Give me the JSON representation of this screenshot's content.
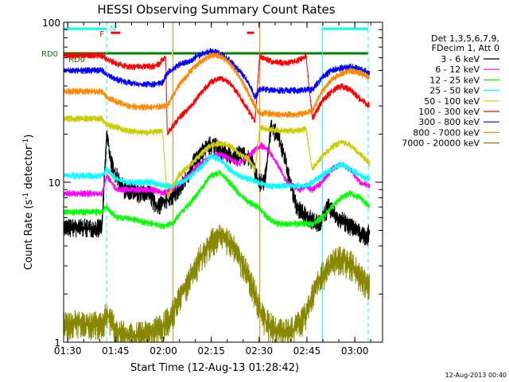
{
  "chart_data": {
    "type": "line",
    "title": "HESSI Observing Summary Count Rates",
    "xlabel": "Start Time (12-Aug-13 01:28:42)",
    "ylabel_prefix": "Count Rate (s",
    "ylabel_sup": "-1",
    "ylabel_suffix": " detector",
    "ylabel_end": ")",
    "y_scale": "log",
    "ylim": [
      1,
      100
    ],
    "xlim_minutes": [
      0,
      100
    ],
    "x_ticks": [
      {
        "m": 1.3,
        "label": "01:30"
      },
      {
        "m": 16.3,
        "label": "01:45"
      },
      {
        "m": 31.3,
        "label": "02:00"
      },
      {
        "m": 46.3,
        "label": "02:15"
      },
      {
        "m": 61.3,
        "label": "02:30"
      },
      {
        "m": 76.3,
        "label": "02:45"
      },
      {
        "m": 91.3,
        "label": "03:00"
      }
    ],
    "y_ticks": [
      {
        "v": 1,
        "label": "1"
      },
      {
        "v": 10,
        "label": "10"
      },
      {
        "v": 100,
        "label": "100"
      }
    ],
    "legend_header": [
      "Det 1,3,5,6,7,9,",
      "FDecim 1, Att 0"
    ],
    "series": [
      {
        "name": "3 - 6 keV",
        "color": "#000000",
        "x": [
          0,
          12,
          13.5,
          15,
          16.5,
          19,
          21,
          23,
          25,
          27,
          29,
          31,
          33,
          35,
          37,
          39,
          41,
          43,
          45,
          47,
          49,
          51,
          53,
          55,
          57,
          59,
          61,
          63,
          65,
          67,
          69,
          71,
          73,
          75,
          77,
          80,
          83,
          86,
          89,
          92,
          95,
          96
        ],
        "y": [
          5.2,
          5.2,
          20,
          13,
          11,
          9,
          9,
          8.5,
          8.5,
          8.5,
          7,
          7.5,
          8,
          8.5,
          9.5,
          11,
          13.5,
          15,
          17,
          17,
          16,
          15,
          14.5,
          15,
          14.5,
          14,
          10,
          10,
          22,
          20,
          15,
          10,
          7,
          6.5,
          6,
          5.5,
          7,
          6,
          5.5,
          5,
          4.5,
          5
        ]
      },
      {
        "name": "6 - 12 keV",
        "color": "#ff00ff",
        "x": [
          0,
          12,
          13.5,
          16.5,
          20,
          24,
          28,
          31,
          34,
          37,
          40,
          43,
          46,
          49,
          52,
          55,
          58,
          60,
          62,
          64,
          66,
          68,
          70,
          72,
          74,
          76,
          78,
          81,
          84,
          87,
          90,
          93,
          96
        ],
        "y": [
          8.5,
          8.5,
          11,
          9,
          9,
          9,
          9,
          8.5,
          9,
          10,
          11.5,
          13,
          14.5,
          15,
          14,
          13,
          14.5,
          16,
          17,
          16,
          14,
          12,
          10,
          9.5,
          9,
          9.5,
          9,
          10,
          12,
          13,
          12,
          10,
          9.5
        ]
      },
      {
        "name": "12 - 25 keV",
        "color": "#00ff00",
        "x": [
          0,
          12,
          13.5,
          16.5,
          20,
          24,
          28,
          31,
          34,
          37,
          40,
          43,
          46,
          49,
          52,
          55,
          58,
          61,
          64,
          67,
          70,
          73,
          76,
          78,
          81,
          84,
          87,
          90,
          93,
          96
        ],
        "y": [
          6.5,
          6.5,
          7,
          6,
          6,
          5.7,
          5.5,
          5.3,
          5.5,
          6.5,
          7.5,
          9,
          11,
          11.5,
          10,
          8.5,
          7.5,
          7,
          6,
          5.5,
          5.5,
          5.5,
          5.5,
          5.5,
          6,
          7,
          8,
          8.5,
          8,
          7
        ]
      },
      {
        "name": "25 - 50 keV",
        "color": "#00ffff",
        "x": [
          0,
          12,
          13.5,
          16.5,
          20,
          24,
          28,
          31,
          34,
          37,
          40,
          43,
          46,
          49,
          52,
          55,
          58,
          61,
          64,
          67,
          70,
          73,
          76,
          78,
          81,
          84,
          87,
          90,
          93,
          96
        ],
        "y": [
          11,
          11,
          12,
          10.5,
          10,
          10,
          10,
          9.5,
          9.5,
          10,
          11,
          12.5,
          14.5,
          14,
          12,
          11,
          10.5,
          10,
          9.5,
          9.5,
          9.5,
          9.5,
          9.5,
          10,
          11,
          12,
          13,
          12,
          11,
          10.5
        ]
      },
      {
        "name": "50 - 100 keV",
        "color": "#cccc00",
        "x": [
          0,
          12,
          13.5,
          16.5,
          20,
          24,
          28,
          31,
          32.5,
          36,
          40,
          43,
          46,
          49,
          52,
          55,
          58,
          60,
          61.5,
          64,
          67,
          70,
          73,
          76,
          78,
          81,
          84,
          87,
          90,
          93,
          96
        ],
        "y": [
          25,
          25,
          23,
          22,
          21,
          20.5,
          20.5,
          21,
          8,
          11,
          13,
          15,
          17,
          17.5,
          17,
          15,
          14,
          12,
          22,
          21.5,
          21,
          21,
          21,
          21.5,
          12,
          14.5,
          16.5,
          18,
          17,
          15,
          13
        ]
      },
      {
        "name": "100 - 300 keV",
        "color": "#ff0000",
        "x": [
          0,
          12,
          13.5,
          16.5,
          20,
          24,
          28,
          30,
          32,
          32.5,
          36,
          40,
          43,
          46,
          49,
          52,
          55,
          58,
          60,
          61.5,
          64,
          67,
          70,
          73,
          76,
          78,
          81,
          84,
          87,
          90,
          93,
          96
        ],
        "y": [
          62,
          62,
          59,
          55,
          53,
          53,
          53,
          55,
          62,
          20,
          25,
          30,
          36,
          42,
          45,
          42,
          35,
          28,
          24,
          62,
          58,
          56,
          56,
          57,
          62,
          25,
          32,
          37,
          40,
          38,
          33,
          30
        ]
      },
      {
        "name": "300 - 800 keV",
        "color": "#0000ff",
        "x": [
          0,
          12,
          13.5,
          16.5,
          20,
          24,
          28,
          31,
          32.5,
          36,
          40,
          43,
          46,
          49,
          52,
          55,
          58,
          60,
          61.5,
          64,
          67,
          70,
          73,
          76,
          78,
          81,
          84,
          87,
          90,
          93,
          96
        ],
        "y": [
          50,
          50,
          47,
          44,
          42,
          41,
          41,
          42,
          48,
          54,
          58,
          63,
          66,
          64,
          58,
          50,
          42,
          34,
          38,
          38,
          37.5,
          37.5,
          37.5,
          38,
          38,
          45,
          50,
          52,
          53,
          51,
          48
        ]
      },
      {
        "name": "800 - 7000 keV",
        "color": "#ff8800",
        "x": [
          0,
          12,
          13.5,
          16.5,
          20,
          24,
          28,
          31,
          32.5,
          36,
          40,
          43,
          46,
          49,
          52,
          55,
          58,
          60,
          61.5,
          64,
          67,
          70,
          73,
          76,
          78,
          81,
          84,
          87,
          90,
          93,
          96
        ],
        "y": [
          37,
          37,
          34,
          32,
          30,
          29.5,
          29.5,
          30,
          30,
          40,
          50,
          57,
          62,
          62,
          56,
          46,
          36,
          30,
          27,
          27,
          26.5,
          26.5,
          26.5,
          27,
          28,
          37,
          44,
          48,
          50,
          48,
          45
        ]
      },
      {
        "name": "7000 - 20000 keV",
        "color": "#888800",
        "x": [
          0,
          12,
          13.5,
          16.5,
          20,
          24,
          28,
          31,
          34,
          37,
          40,
          43,
          46,
          49,
          52,
          55,
          58,
          60,
          62,
          64,
          66,
          68,
          70,
          72,
          74,
          76,
          78,
          81,
          84,
          87,
          90,
          93,
          96
        ],
        "y": [
          1.3,
          1.3,
          1.5,
          1.2,
          1.1,
          1.1,
          1.15,
          1.25,
          1.5,
          2,
          2.6,
          3.4,
          4.2,
          4.6,
          4.2,
          3.4,
          2.6,
          2,
          1.5,
          1.3,
          1.2,
          1.15,
          1.15,
          1.2,
          1.3,
          1.5,
          2,
          2.6,
          3.1,
          3.3,
          3.1,
          2.6,
          2.2
        ]
      }
    ],
    "flags": [
      {
        "label": "RD0",
        "color": "#008000",
        "y": 64,
        "segments": [
          [
            0,
            34
          ],
          [
            34.3,
            95.5
          ]
        ]
      },
      {
        "label": "RD0",
        "color": "#008000",
        "y": 59
      },
      {
        "label": "F",
        "color": "#ff0000",
        "y": 86,
        "segments": [
          [
            14.8,
            17.8
          ],
          [
            57.5,
            59.7
          ]
        ]
      },
      {
        "label": "N",
        "color": "#00ffff",
        "y": 91,
        "segments": [
          [
            0,
            13.5
          ],
          [
            81.2,
            95.5
          ]
        ]
      }
    ],
    "shading": [
      {
        "color": "#00ffff",
        "style": "solid",
        "x": [
          0,
          81.2
        ]
      },
      {
        "color": "#00ffff",
        "style": "dashed",
        "x": [
          13.5,
          95.5
        ]
      },
      {
        "color": "#ff8800",
        "style": "solid",
        "x": [
          34.3,
          61.5
        ]
      }
    ],
    "grid": false,
    "legend": "right",
    "footer": "12-Aug-2013 00:40"
  }
}
